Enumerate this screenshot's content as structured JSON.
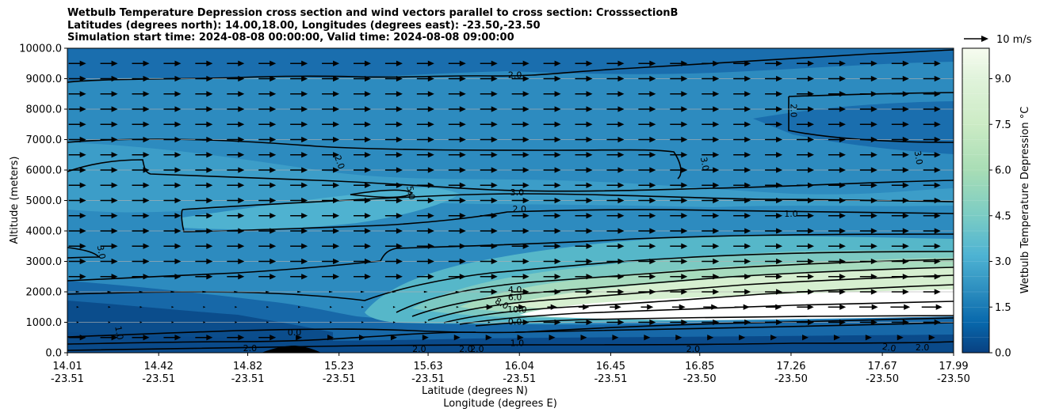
{
  "chart_data": {
    "type": "contour",
    "title_lines": [
      "Wetbulb Temperature Depression cross section and wind vectors parallel to cross section: CrosssectionB",
      "Latitudes (degrees north): 14.00,18.00, Longitudes (degrees east): -23.50,-23.50",
      "Simulation start time: 2024-08-08 00:00:00, Valid time: 2024-08-08 09:00:00"
    ],
    "ylabel": "Altitude (meters)",
    "xlabel_line1": "Latitude (degrees N)",
    "xlabel_line2": "Longitude (degrees E)",
    "ylim": [
      0,
      10000
    ],
    "yticks": [
      "0.0",
      "1000.0",
      "2000.0",
      "3000.0",
      "4000.0",
      "5000.0",
      "6000.0",
      "7000.0",
      "8000.0",
      "9000.0",
      "10000.0"
    ],
    "xlim": [
      14.01,
      17.99
    ],
    "xticks": [
      {
        "lat": 14.01,
        "lat_label": "14.01",
        "lon_label": "-23.51"
      },
      {
        "lat": 14.42,
        "lat_label": "14.42",
        "lon_label": "-23.51"
      },
      {
        "lat": 14.82,
        "lat_label": "14.82",
        "lon_label": "-23.51"
      },
      {
        "lat": 15.23,
        "lat_label": "15.23",
        "lon_label": "-23.51"
      },
      {
        "lat": 15.63,
        "lat_label": "15.63",
        "lon_label": "-23.51"
      },
      {
        "lat": 16.04,
        "lat_label": "16.04",
        "lon_label": "-23.51"
      },
      {
        "lat": 16.45,
        "lat_label": "16.45",
        "lon_label": "-23.51"
      },
      {
        "lat": 16.85,
        "lat_label": "16.85",
        "lon_label": "-23.50"
      },
      {
        "lat": 17.26,
        "lat_label": "17.26",
        "lon_label": "-23.50"
      },
      {
        "lat": 17.67,
        "lat_label": "17.67",
        "lon_label": "-23.50"
      },
      {
        "lat": 17.99,
        "lat_label": "17.99",
        "lon_label": "-23.50"
      }
    ],
    "grid_y": true,
    "colorbar": {
      "label": "Wetbulb Temperature Depression °C",
      "range": [
        0,
        10
      ],
      "ticks": [
        "0.0",
        "1.5",
        "3.0",
        "4.5",
        "6.0",
        "7.5",
        "9.0"
      ],
      "colormap": "GnBu reversed"
    },
    "quiver_key": {
      "label": "10 m/s"
    },
    "contour_labels": [
      {
        "text": "2.0",
        "lat": 16.02,
        "alt": 9100,
        "rot": 0
      },
      {
        "text": "2.0",
        "lat": 17.27,
        "alt": 7950,
        "rot": 90
      },
      {
        "text": "2.0",
        "lat": 15.23,
        "alt": 6250,
        "rot": 70
      },
      {
        "text": "3.0",
        "lat": 16.87,
        "alt": 6200,
        "rot": 80
      },
      {
        "text": "3.0",
        "lat": 17.83,
        "alt": 6400,
        "rot": 80
      },
      {
        "text": "5.0",
        "lat": 15.55,
        "alt": 5250,
        "rot": 80
      },
      {
        "text": "3.0",
        "lat": 16.03,
        "alt": 5250,
        "rot": 0
      },
      {
        "text": "2.0",
        "lat": 16.04,
        "alt": 4700,
        "rot": 0
      },
      {
        "text": "1.0",
        "lat": 17.26,
        "alt": 4550,
        "rot": 0
      },
      {
        "text": "3.0",
        "lat": 14.16,
        "alt": 3300,
        "rot": 80
      },
      {
        "text": "4.0",
        "lat": 16.02,
        "alt": 2050,
        "rot": 0
      },
      {
        "text": "6.0",
        "lat": 16.02,
        "alt": 1800,
        "rot": 0
      },
      {
        "text": "8.0",
        "lat": 15.96,
        "alt": 1600,
        "rot": 30
      },
      {
        "text": "10.0",
        "lat": 16.03,
        "alt": 1400,
        "rot": 0
      },
      {
        "text": "0.0",
        "lat": 16.02,
        "alt": 1000,
        "rot": 0
      },
      {
        "text": "0.0",
        "lat": 15.03,
        "alt": 650,
        "rot": 0
      },
      {
        "text": "1.0",
        "lat": 14.24,
        "alt": 650,
        "rot": 80
      },
      {
        "text": "1.0",
        "lat": 16.03,
        "alt": 300,
        "rot": 0
      },
      {
        "text": "2.0",
        "lat": 14.83,
        "alt": 130,
        "rot": 0
      },
      {
        "text": "2.0",
        "lat": 15.59,
        "alt": 100,
        "rot": 0
      },
      {
        "text": "2.0",
        "lat": 15.8,
        "alt": 100,
        "rot": 0
      },
      {
        "text": "2.0",
        "lat": 15.85,
        "alt": 100,
        "rot": 0
      },
      {
        "text": "2.0",
        "lat": 16.82,
        "alt": 100,
        "rot": 0
      },
      {
        "text": "2.0",
        "lat": 17.7,
        "alt": 150,
        "rot": 10
      },
      {
        "text": "2.0",
        "lat": 17.85,
        "alt": 150,
        "rot": 0
      }
    ]
  }
}
